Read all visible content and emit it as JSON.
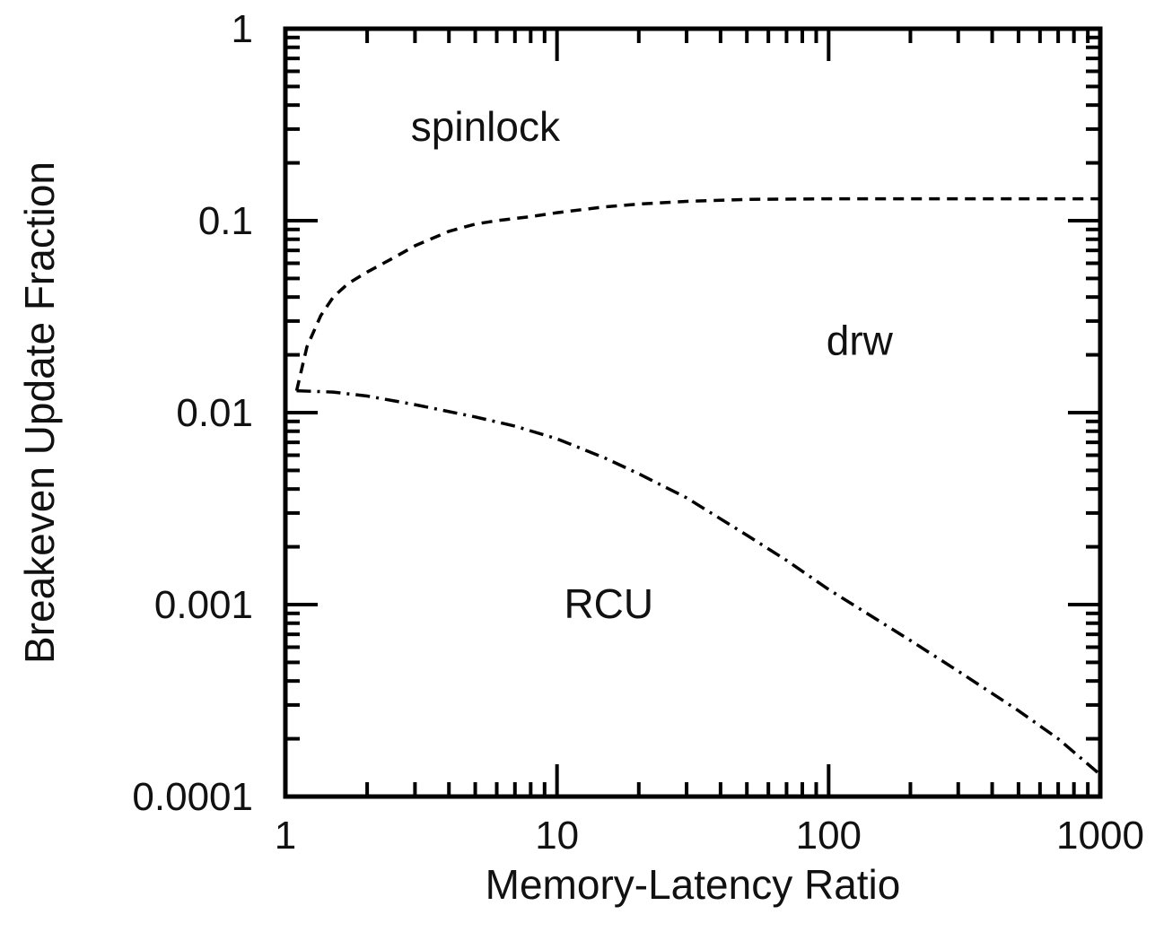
{
  "chart_data": {
    "type": "line",
    "title": "",
    "xlabel": "Memory-Latency Ratio",
    "ylabel": "Breakeven Update Fraction",
    "xscale": "log",
    "yscale": "log",
    "xlim": [
      1,
      1000
    ],
    "ylim": [
      0.0001,
      1
    ],
    "x_tick_labels": [
      "1",
      "10",
      "100",
      "1000"
    ],
    "y_tick_labels": [
      "0.0001",
      "0.001",
      "0.01",
      "0.1",
      "1"
    ],
    "grid": false,
    "legend": "none",
    "region_labels": [
      "spinlock",
      "drw",
      "RCU"
    ],
    "series": [
      {
        "style": "dashed",
        "x": [
          1.1,
          1.2,
          1.35,
          1.5,
          1.7,
          2,
          2.5,
          3,
          4,
          5,
          6,
          8,
          10,
          15,
          20,
          30,
          50,
          100,
          200,
          500,
          1000
        ],
        "y": [
          0.013,
          0.022,
          0.032,
          0.04,
          0.047,
          0.054,
          0.064,
          0.074,
          0.088,
          0.096,
          0.1,
          0.105,
          0.11,
          0.118,
          0.122,
          0.126,
          0.129,
          0.13,
          0.13,
          0.13,
          0.13
        ]
      },
      {
        "style": "dash-dot",
        "x": [
          1.1,
          1.5,
          2,
          3,
          5,
          7,
          10,
          15,
          20,
          30,
          50,
          70,
          100,
          200,
          300,
          500,
          700,
          1000
        ],
        "y": [
          0.013,
          0.0128,
          0.0122,
          0.011,
          0.0095,
          0.0085,
          0.0073,
          0.0058,
          0.0048,
          0.0036,
          0.0023,
          0.0017,
          0.0012,
          0.00065,
          0.00045,
          0.00028,
          0.0002,
          0.00013
        ]
      }
    ]
  }
}
